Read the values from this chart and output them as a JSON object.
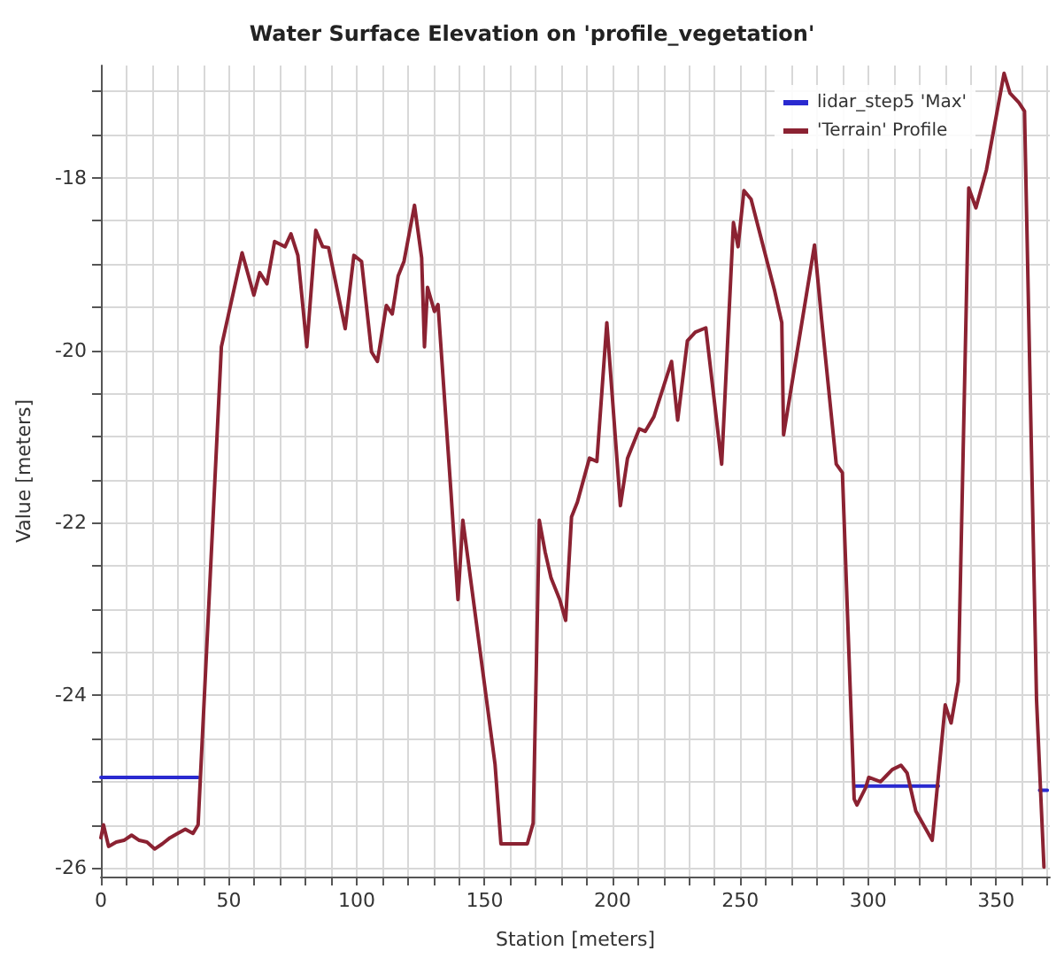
{
  "chart_data": {
    "type": "line",
    "title": "Water Surface Elevation on 'profile_vegetation'",
    "xlabel": "Station [meters]",
    "ylabel": "Value [meters]",
    "xlim": [
      0,
      371
    ],
    "ylim": [
      -26.1,
      -16.7
    ],
    "xticks": [
      0,
      {
        "value": 10,
        "label": null
      },
      {
        "value": 20,
        "label": null
      },
      {
        "value": 30,
        "label": null
      },
      {
        "value": 40,
        "label": null
      },
      50,
      {
        "value": 60,
        "label": null
      },
      {
        "value": 70,
        "label": null
      },
      {
        "value": 80,
        "label": null
      },
      {
        "value": 90,
        "label": null
      },
      100,
      {
        "value": 110,
        "label": null
      },
      {
        "value": 120,
        "label": null
      },
      {
        "value": 130,
        "label": null
      },
      {
        "value": 140,
        "label": null
      },
      150,
      {
        "value": 160,
        "label": null
      },
      {
        "value": 170,
        "label": null
      },
      {
        "value": 180,
        "label": null
      },
      {
        "value": 190,
        "label": null
      },
      200,
      {
        "value": 210,
        "label": null
      },
      {
        "value": 220,
        "label": null
      },
      {
        "value": 230,
        "label": null
      },
      {
        "value": 240,
        "label": null
      },
      250,
      {
        "value": 260,
        "label": null
      },
      {
        "value": 270,
        "label": null
      },
      {
        "value": 280,
        "label": null
      },
      {
        "value": 290,
        "label": null
      },
      300,
      {
        "value": 310,
        "label": null
      },
      {
        "value": 320,
        "label": null
      },
      {
        "value": 330,
        "label": null
      },
      {
        "value": 340,
        "label": null
      },
      350,
      {
        "value": 360,
        "label": null
      },
      {
        "value": 370,
        "label": null
      }
    ],
    "yticks": [
      -26,
      {
        "value": -25.5,
        "label": null
      },
      {
        "value": -25,
        "label": null
      },
      {
        "value": -24.5,
        "label": null
      },
      -24,
      {
        "value": -23.5,
        "label": null
      },
      {
        "value": -23,
        "label": null
      },
      {
        "value": -22.5,
        "label": null
      },
      -22,
      {
        "value": -21.5,
        "label": null
      },
      {
        "value": -21,
        "label": null
      },
      {
        "value": -20.5,
        "label": null
      },
      -20,
      {
        "value": -19.5,
        "label": null
      },
      {
        "value": -19,
        "label": null
      },
      {
        "value": -18.5,
        "label": null
      },
      -18,
      {
        "value": -17.5,
        "label": null
      },
      {
        "value": -17,
        "label": null
      }
    ],
    "grid": true,
    "legend": "top right",
    "marker": "none",
    "line_style": "solid",
    "series": [
      {
        "name": "lidar_step5 'Max'",
        "color": "#2a2ad0",
        "x": [
          0,
          38,
          39,
          294.5,
          327.4,
          328,
          367,
          370
        ],
        "values": [
          -24.95,
          -24.95,
          null,
          -25.05,
          -25.05,
          null,
          -25.1,
          -25.1
        ]
      },
      {
        "name": "'Terrain' Profile",
        "color": "#8b2232",
        "x": [
          0,
          1,
          3,
          6,
          9,
          12,
          15,
          18,
          21,
          24,
          27,
          30,
          33,
          36,
          38,
          47.1,
          55.2,
          59.8,
          62.1,
          64.9,
          67.9,
          72,
          74.3,
          77,
          80.5,
          84,
          86.7,
          89,
          95.5,
          98.9,
          101.9,
          105.8,
          108.1,
          111.6,
          113.9,
          116.2,
          118.5,
          122.6,
          125.4,
          126.5,
          127.7,
          130.4,
          131.8,
          136.9,
          139.6,
          141.5,
          154.1,
          156.4,
          166.7,
          169,
          171.4,
          173.7,
          176,
          179.4,
          181.7,
          184,
          186.3,
          191,
          193.9,
          197.8,
          203.1,
          205.9,
          210.5,
          212.8,
          216.2,
          223.1,
          225.5,
          229.3,
          232.4,
          236.5,
          242.7,
          247.3,
          249.1,
          251.4,
          254.2,
          263.4,
          266.2,
          266.9,
          279,
          281.8,
          287.5,
          289.9,
          294.5,
          295.6,
          299,
          300.2,
          304.8,
          307.1,
          309.4,
          312.8,
          315.2,
          318.6,
          325,
          330.1,
          332.4,
          335.2,
          339.3,
          342.1,
          346.2,
          353.1,
          355.4,
          358.9,
          361.1,
          365.8,
          368.7
        ],
        "values": [
          -25.65,
          -25.5,
          -25.75,
          -25.7,
          -25.68,
          -25.62,
          -25.68,
          -25.7,
          -25.78,
          -25.72,
          -25.65,
          -25.6,
          -25.55,
          -25.6,
          -25.5,
          -19.96,
          -18.87,
          -19.36,
          -19.1,
          -19.23,
          -18.74,
          -18.8,
          -18.65,
          -18.9,
          -19.96,
          -18.61,
          -18.8,
          -18.81,
          -19.75,
          -18.9,
          -18.97,
          -20.02,
          -20.13,
          -19.48,
          -19.58,
          -19.14,
          -18.97,
          -18.32,
          -18.93,
          -19.96,
          -19.27,
          -19.55,
          -19.47,
          -21.66,
          -22.89,
          -21.97,
          -24.8,
          -25.72,
          -25.72,
          -25.48,
          -21.97,
          -22.34,
          -22.64,
          -22.89,
          -23.13,
          -21.93,
          -21.76,
          -21.25,
          -21.29,
          -19.68,
          -21.8,
          -21.25,
          -20.91,
          -20.94,
          -20.77,
          -20.13,
          -20.81,
          -19.89,
          -19.79,
          -19.74,
          -21.32,
          -18.52,
          -18.8,
          -18.15,
          -18.25,
          -19.31,
          -19.68,
          -20.98,
          -18.78,
          -19.65,
          -21.32,
          -21.42,
          -25.2,
          -25.27,
          -25.07,
          -24.95,
          -25,
          -24.93,
          -24.86,
          -24.81,
          -24.9,
          -25.34,
          -25.68,
          -24.11,
          -24.32,
          -23.84,
          -18.12,
          -18.35,
          -17.91,
          -16.79,
          -17.02,
          -17.13,
          -17.23,
          -24.05,
          -25.99
        ]
      }
    ]
  }
}
